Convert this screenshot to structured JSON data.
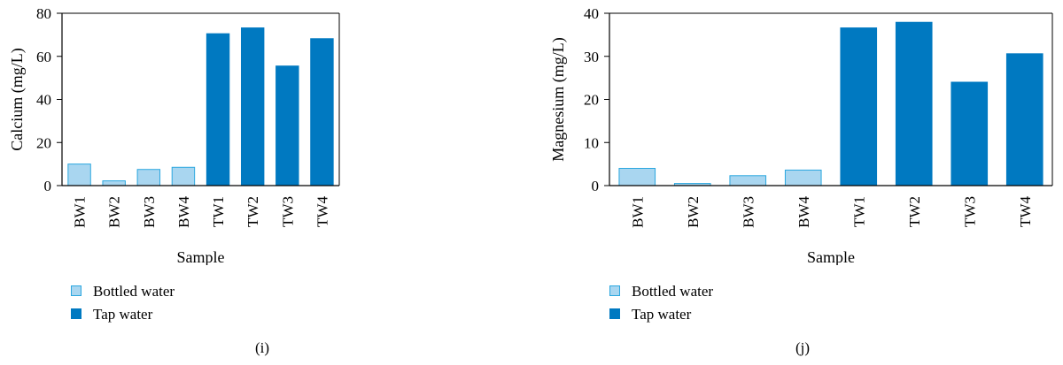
{
  "colors": {
    "bottled_fill": "#a9d6f0",
    "bottled_stroke": "#2ba7df",
    "tap_fill": "#0079c1",
    "tap_stroke": "#0079c1"
  },
  "legend": {
    "bottled": "Bottled water",
    "tap": "Tap water"
  },
  "panels": [
    {
      "label": "(i)"
    },
    {
      "label": "(j)"
    }
  ],
  "chart_data": [
    {
      "type": "bar",
      "xlabel": "Sample",
      "ylabel": "Calcium (mg/L)",
      "categories": [
        "BW1",
        "BW2",
        "BW3",
        "BW4",
        "TW1",
        "TW2",
        "TW3",
        "TW4"
      ],
      "values": [
        10,
        2.2,
        7.5,
        8.5,
        70.5,
        73.2,
        55.5,
        68.2
      ],
      "group": [
        "bottled",
        "bottled",
        "bottled",
        "bottled",
        "tap",
        "tap",
        "tap",
        "tap"
      ],
      "ylim": [
        0,
        80
      ],
      "yticks": [
        0,
        20,
        40,
        60,
        80
      ],
      "grid": false
    },
    {
      "type": "bar",
      "xlabel": "Sample",
      "ylabel": "Magnesium (mg/L)",
      "categories": [
        "BW1",
        "BW2",
        "BW3",
        "BW4",
        "TW1",
        "TW2",
        "TW3",
        "TW4"
      ],
      "values": [
        4,
        0.5,
        2.3,
        3.6,
        36.6,
        37.9,
        24,
        30.6
      ],
      "group": [
        "bottled",
        "bottled",
        "bottled",
        "bottled",
        "tap",
        "tap",
        "tap",
        "tap"
      ],
      "ylim": [
        0,
        40
      ],
      "yticks": [
        0,
        10,
        20,
        30,
        40
      ],
      "grid": false
    }
  ]
}
